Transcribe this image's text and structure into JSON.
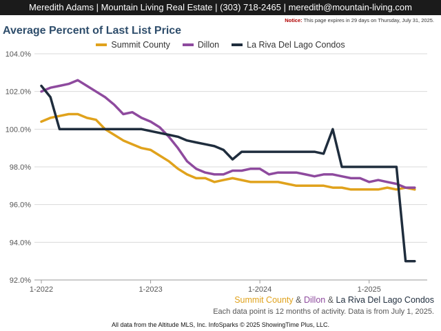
{
  "header": {
    "agent_name": "Meredith Adams",
    "company": "Mountain Living Real Estate",
    "phone": "(303) 718-2465",
    "email": "meredith@mountain-living.com"
  },
  "notice": {
    "label": "Notice:",
    "text": "This page expires in 29 days on Thursday, July 31, 2025."
  },
  "caption": {
    "joiner": "&",
    "note": "Each data point is 12 months of activity. Data is from July 1, 2025."
  },
  "footer": {
    "text": "All data from the Altitude MLS, Inc. InfoSparks © 2025 ShowingTime Plus, LLC."
  },
  "chart_data": {
    "type": "line",
    "title": "Average Percent of Last List Price",
    "legend_position": "top-center",
    "grid": true,
    "ylim": [
      92.0,
      104.0
    ],
    "yticks": [
      "92.0%",
      "94.0%",
      "96.0%",
      "98.0%",
      "100.0%",
      "102.0%",
      "104.0%"
    ],
    "ytick_values": [
      92.0,
      94.0,
      96.0,
      98.0,
      100.0,
      102.0,
      104.0
    ],
    "xlim": [
      "2022-01",
      "2025-07"
    ],
    "xticks": [
      "1-2022",
      "1-2023",
      "1-2024",
      "1-2025"
    ],
    "x": [
      "2022-01",
      "2022-02",
      "2022-03",
      "2022-04",
      "2022-05",
      "2022-06",
      "2022-07",
      "2022-08",
      "2022-09",
      "2022-10",
      "2022-11",
      "2022-12",
      "2023-01",
      "2023-02",
      "2023-03",
      "2023-04",
      "2023-05",
      "2023-06",
      "2023-07",
      "2023-08",
      "2023-09",
      "2023-10",
      "2023-11",
      "2023-12",
      "2024-01",
      "2024-02",
      "2024-03",
      "2024-04",
      "2024-05",
      "2024-06",
      "2024-07",
      "2024-08",
      "2024-09",
      "2024-10",
      "2024-11",
      "2024-12",
      "2025-01",
      "2025-02",
      "2025-03",
      "2025-04",
      "2025-05",
      "2025-06"
    ],
    "series": [
      {
        "name": "Summit County",
        "color": "#e0a21c",
        "values": [
          100.4,
          100.6,
          100.7,
          100.8,
          100.8,
          100.6,
          100.5,
          100.0,
          99.7,
          99.4,
          99.2,
          99.0,
          98.9,
          98.6,
          98.3,
          97.9,
          97.6,
          97.4,
          97.4,
          97.2,
          97.3,
          97.4,
          97.3,
          97.2,
          97.2,
          97.2,
          97.2,
          97.1,
          97.0,
          97.0,
          97.0,
          97.0,
          96.9,
          96.9,
          96.8,
          96.8,
          96.8,
          96.8,
          96.9,
          96.8,
          96.9,
          96.8
        ]
      },
      {
        "name": "Dillon",
        "color": "#8e4a9e",
        "values": [
          102.0,
          102.2,
          102.3,
          102.4,
          102.6,
          102.3,
          102.0,
          101.7,
          101.3,
          100.8,
          100.9,
          100.6,
          100.4,
          100.1,
          99.6,
          99.0,
          98.3,
          97.9,
          97.7,
          97.6,
          97.6,
          97.8,
          97.8,
          97.9,
          97.9,
          97.6,
          97.7,
          97.7,
          97.7,
          97.6,
          97.5,
          97.6,
          97.6,
          97.5,
          97.4,
          97.4,
          97.2,
          97.3,
          97.2,
          97.1,
          96.9,
          96.9
        ]
      },
      {
        "name": "La Riva Del Lago Condos",
        "color": "#1f2d3d",
        "values": [
          102.3,
          101.7,
          100.0,
          100.0,
          100.0,
          100.0,
          100.0,
          100.0,
          100.0,
          100.0,
          100.0,
          100.0,
          99.9,
          99.8,
          99.7,
          99.6,
          99.4,
          99.3,
          99.2,
          99.1,
          98.9,
          98.4,
          98.8,
          98.8,
          98.8,
          98.8,
          98.8,
          98.8,
          98.8,
          98.8,
          98.8,
          98.7,
          100.0,
          98.0,
          98.0,
          98.0,
          98.0,
          98.0,
          98.0,
          98.0,
          93.0,
          93.0
        ]
      }
    ]
  }
}
